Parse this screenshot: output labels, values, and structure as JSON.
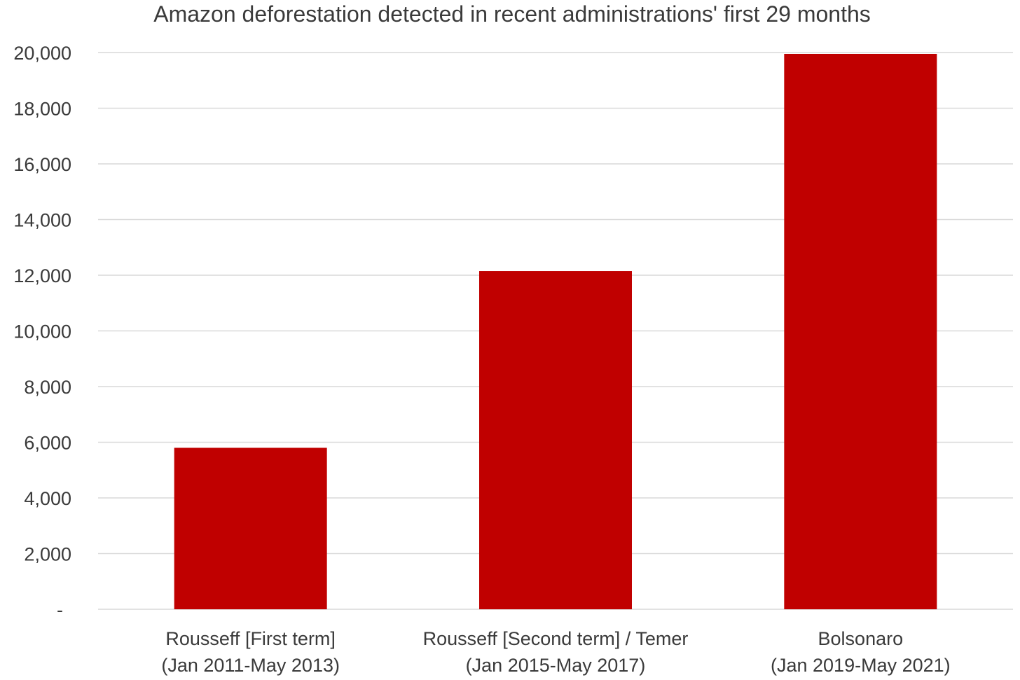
{
  "chart_data": {
    "type": "bar",
    "title": "Amazon deforestation detected in recent administrations' first 29 months",
    "categories": [
      [
        "Rousseff [First term]",
        "(Jan 2011-May 2013)"
      ],
      [
        "Rousseff [Second term] / Temer",
        "(Jan 2015-May 2017)"
      ],
      [
        "Bolsonaro",
        "(Jan 2019-May 2021)"
      ]
    ],
    "values": [
      5800,
      12150,
      19950
    ],
    "ylim": [
      0,
      20000
    ],
    "yticks": [
      0,
      2000,
      4000,
      6000,
      8000,
      10000,
      12000,
      14000,
      16000,
      18000,
      20000
    ],
    "ytick_labels": [
      "-",
      "2,000",
      "4,000",
      "6,000",
      "8,000",
      "10,000",
      "12,000",
      "14,000",
      "16,000",
      "18,000",
      "20,000"
    ],
    "xlabel": "",
    "ylabel": "",
    "grid": true,
    "legend": "none",
    "bar_color": "#c00000",
    "grid_color": "#d9d9d9",
    "text_color": "#3a3a3a"
  }
}
